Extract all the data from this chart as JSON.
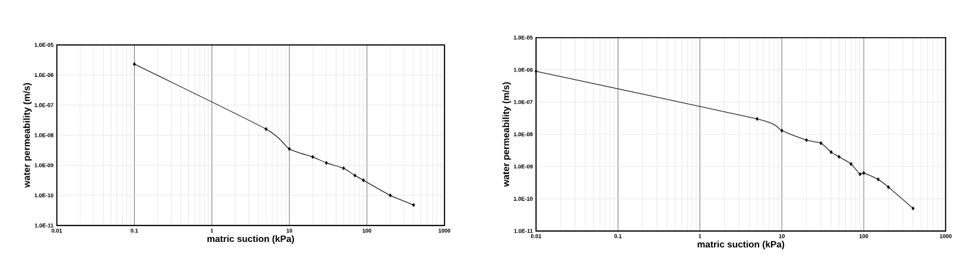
{
  "chart_data": [
    {
      "type": "line",
      "xlabel": "matric suction (kPa)",
      "ylabel": "water permeability (m/s)",
      "log": "xy",
      "grid": true,
      "marker": "diamond",
      "line_style": "solid",
      "x": [
        0.1,
        5,
        10,
        20,
        30,
        50,
        70,
        90,
        200,
        400
      ],
      "series": [
        {
          "color": "#111111",
          "values": [
            2.3e-06,
            1.6e-08,
            3.5e-09,
            1.9e-09,
            1.2e-09,
            8e-10,
            4.6e-10,
            3.2e-10,
            1e-10,
            4.8e-11
          ]
        }
      ],
      "xlim": [
        0.01,
        1000
      ],
      "xticks": [
        0.01,
        0.1,
        1,
        10,
        100,
        1000
      ],
      "ylim": [
        1e-11,
        1e-05
      ],
      "yticks": [
        {
          "value": 1e-11,
          "label": "1.0E-11"
        },
        {
          "value": 1e-10,
          "label": "1.0E-10"
        },
        {
          "value": 1e-09,
          "label": "1.0E-09"
        },
        {
          "value": 1e-08,
          "label": "1.0E-08"
        },
        {
          "value": 1e-07,
          "label": "1.0E-07"
        },
        {
          "value": 1e-06,
          "label": "1.0E-06"
        },
        {
          "value": 1e-05,
          "label": "1.0E-05"
        }
      ]
    },
    {
      "type": "line",
      "xlabel": "matric suction (kPa)",
      "ylabel": "water permeability (m/s)",
      "log": "xy",
      "grid": true,
      "marker": "diamond",
      "line_style": "solid",
      "x": [
        0.01,
        5,
        10,
        20,
        30,
        40,
        50,
        70,
        90,
        100,
        150,
        200,
        400
      ],
      "series": [
        {
          "color": "#111111",
          "values": [
            9e-07,
            3e-08,
            1.3e-08,
            6.6e-09,
            5.3e-09,
            2.8e-09,
            2e-09,
            1.2e-09,
            5.8e-10,
            6.3e-10,
            4e-10,
            2.3e-10,
            5e-11
          ]
        }
      ],
      "xlim": [
        0.01,
        1000
      ],
      "xticks": [
        0.01,
        0.1,
        1,
        10,
        100,
        1000
      ],
      "ylim": [
        1e-11,
        1e-05
      ],
      "yticks": [
        {
          "value": 1e-11,
          "label": "1.0E-11"
        },
        {
          "value": 1e-10,
          "label": "1.0E-10"
        },
        {
          "value": 1e-09,
          "label": "1.0E-09"
        },
        {
          "value": 1e-08,
          "label": "1.0E-08"
        },
        {
          "value": 1e-07,
          "label": "1.0E-07"
        },
        {
          "value": 1e-06,
          "label": "1.0E-06"
        },
        {
          "value": 1e-05,
          "label": "1.0E-05"
        }
      ]
    }
  ]
}
